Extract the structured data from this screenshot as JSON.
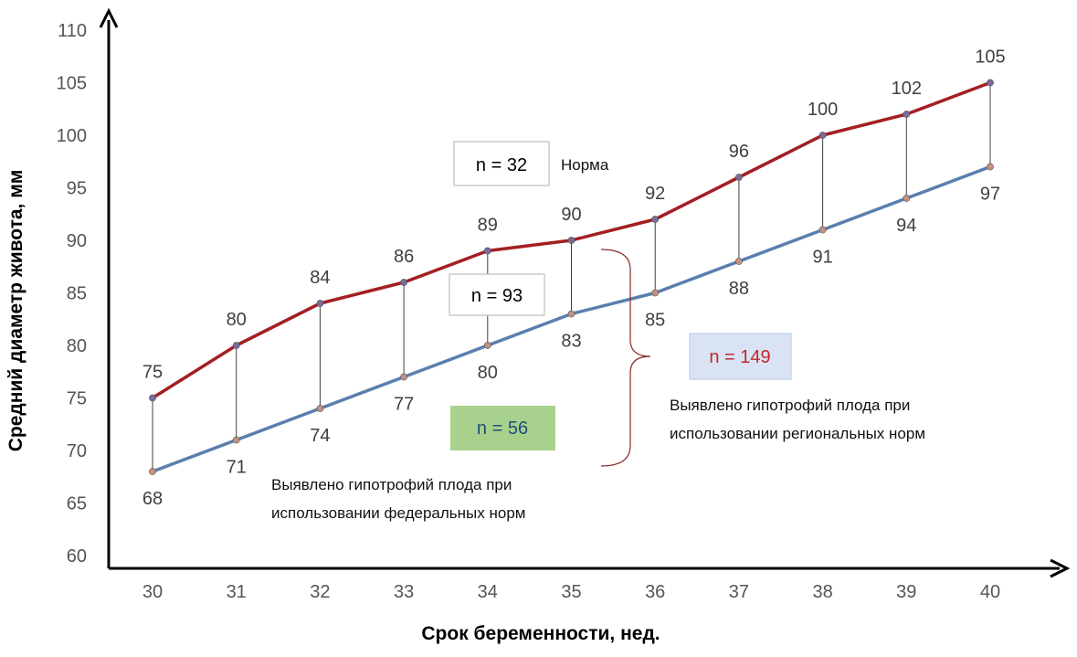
{
  "chart_data": {
    "type": "line",
    "xlabel": "Срок беременности, нед.",
    "ylabel": "Средний диаметр живота, мм",
    "x": [
      30,
      31,
      32,
      33,
      34,
      35,
      36,
      37,
      38,
      39,
      40
    ],
    "ylim": [
      60,
      110
    ],
    "yticks": [
      60,
      65,
      70,
      75,
      80,
      85,
      90,
      95,
      100,
      105,
      110
    ],
    "grid": false,
    "series": [
      {
        "name": "upper",
        "color": "#A31F22",
        "values": [
          75,
          80,
          84,
          86,
          89,
          90,
          92,
          96,
          100,
          102,
          105
        ]
      },
      {
        "name": "lower",
        "color": "#5A7FAE",
        "values": [
          68,
          71,
          74,
          77,
          80,
          83,
          85,
          88,
          91,
          94,
          97
        ]
      }
    ],
    "annotations": {
      "norm": {
        "count": "n = 32",
        "label": "Норма"
      },
      "mid_box": "n = 93",
      "federal": {
        "count": "n = 56",
        "text_line1": "Выявлено гипотрофий плода при",
        "text_line2": "использовании федеральных норм"
      },
      "regional": {
        "count": "n = 149",
        "text_line1": "Выявлено гипотрофий плода при",
        "text_line2": "использовании региональных норм"
      }
    }
  },
  "colors": {
    "upper_line": "#A31F22",
    "lower_line": "#5A7FAE",
    "green_box": "#A9D18E",
    "blue_box": "#DAE3F3",
    "red_text": "#C0282D",
    "marker": "#7B6B9A"
  }
}
